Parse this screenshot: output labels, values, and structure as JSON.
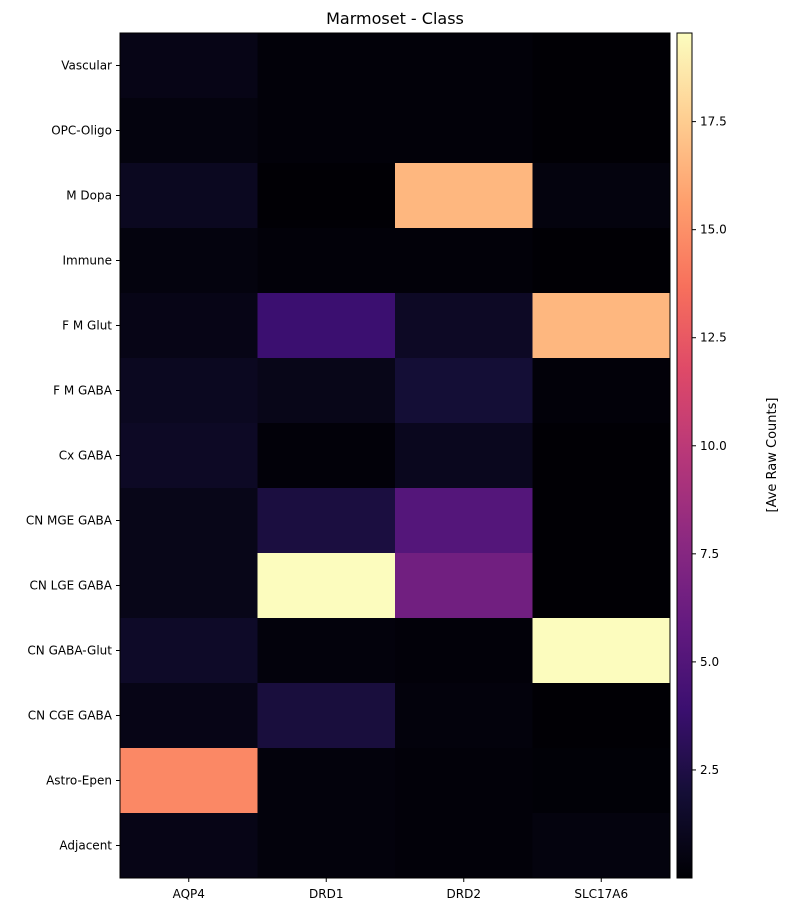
{
  "chart_data": {
    "type": "heatmap",
    "title": "Marmoset - Class",
    "xlabel": "",
    "ylabel": "",
    "colormap": "magma",
    "x_categories": [
      "AQP4",
      "DRD1",
      "DRD2",
      "SLC17A6"
    ],
    "y_categories": [
      "Vascular",
      "OPC-Oligo",
      "M Dopa",
      "Immune",
      "F M Glut",
      "F M GABA",
      "Cx GABA",
      "CN MGE GABA",
      "CN LGE GABA",
      "CN GABA-Glut",
      "CN CGE GABA",
      "Astro-Epen",
      "Adjacent"
    ],
    "values": [
      [
        0.7,
        0.2,
        0.2,
        0.05
      ],
      [
        0.4,
        0.2,
        0.2,
        0.05
      ],
      [
        1.1,
        0.05,
        16.6,
        0.4
      ],
      [
        0.4,
        0.2,
        0.2,
        0.05
      ],
      [
        0.7,
        3.9,
        1.3,
        16.6
      ],
      [
        1.1,
        0.8,
        1.95,
        0.2
      ],
      [
        1.3,
        0.2,
        1.0,
        0.05
      ],
      [
        0.8,
        2.3,
        5.1,
        0.05
      ],
      [
        0.8,
        19.5,
        6.5,
        0.05
      ],
      [
        1.4,
        0.3,
        0.2,
        19.5
      ],
      [
        0.7,
        2.2,
        0.3,
        0.05
      ],
      [
        14.7,
        0.3,
        0.2,
        0.1
      ],
      [
        0.7,
        0.3,
        0.2,
        0.4
      ]
    ],
    "colorbar": {
      "label": "[Ave Raw Counts]",
      "range": [
        0.0,
        19.55
      ],
      "ticks": [
        2.5,
        5.0,
        7.5,
        10.0,
        12.5,
        15.0,
        17.5
      ],
      "tick_labels": [
        "2.5",
        "5.0",
        "7.5",
        "10.0",
        "12.5",
        "15.0",
        "17.5"
      ]
    },
    "grid": false
  }
}
